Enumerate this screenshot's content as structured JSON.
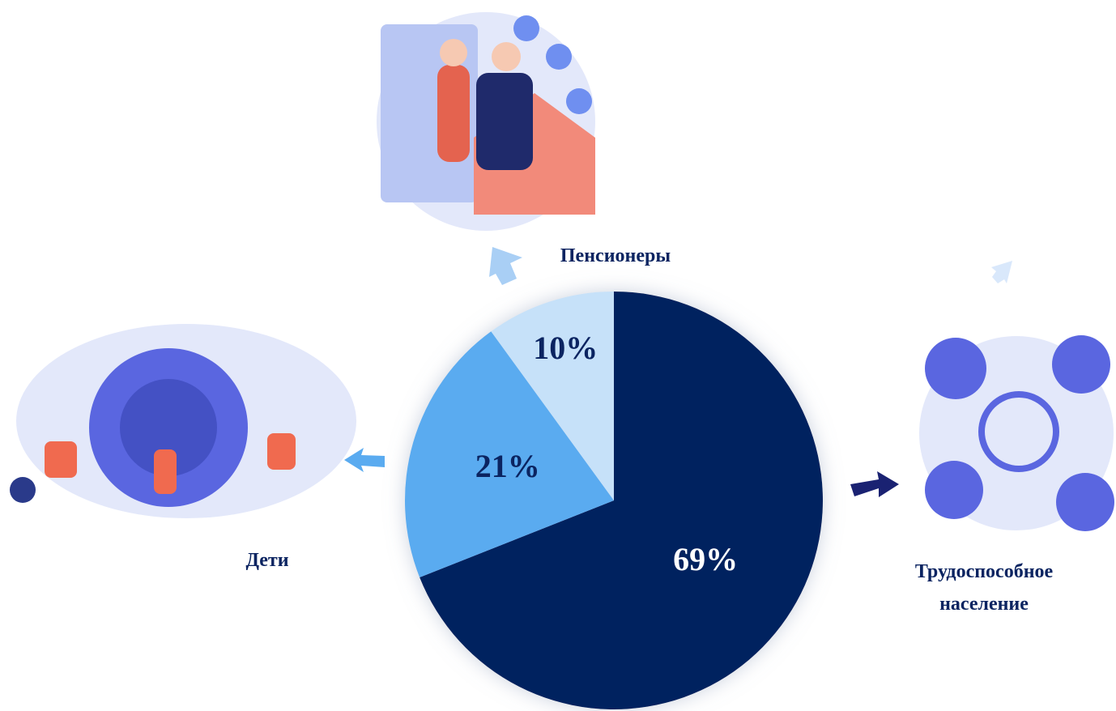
{
  "chart_data": {
    "type": "pie",
    "categories": [
      "Трудоспособное население",
      "Дети",
      "Пенсионеры"
    ],
    "values": [
      69,
      21,
      10
    ],
    "value_labels": [
      "69%",
      "21%",
      "10%"
    ],
    "colors": [
      "#06215e",
      "#5aabf0",
      "#c6e1f9"
    ]
  }
}
